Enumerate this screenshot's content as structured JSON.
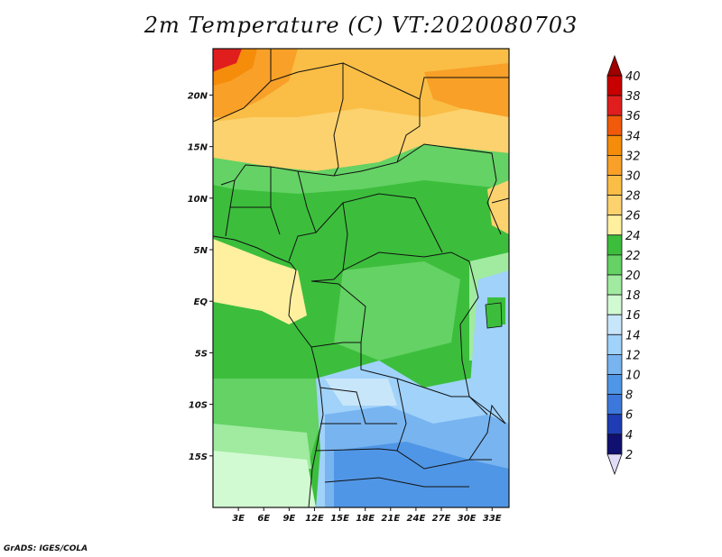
{
  "title": "2m Temperature (C) VT:2020080703",
  "credit": "GrADS: IGES/COLA",
  "map": {
    "lat_labels": [
      "20N",
      "15N",
      "10N",
      "5N",
      "EQ",
      "5S",
      "10S",
      "15S"
    ],
    "lat_values": [
      20,
      15,
      10,
      5,
      0,
      -5,
      -10,
      -15
    ],
    "lon_labels": [
      "3E",
      "6E",
      "9E",
      "12E",
      "15E",
      "18E",
      "21E",
      "24E",
      "27E",
      "30E",
      "33E"
    ],
    "lon_values": [
      3,
      6,
      9,
      12,
      15,
      18,
      21,
      24,
      27,
      30,
      33
    ],
    "lon_range": [
      0,
      35
    ],
    "lat_range": [
      -20,
      24.5
    ]
  },
  "colorbar": {
    "labels": [
      "40",
      "38",
      "36",
      "34",
      "32",
      "30",
      "28",
      "26",
      "24",
      "22",
      "20",
      "18",
      "16",
      "14",
      "12",
      "10",
      "8",
      "6",
      "4",
      "2"
    ],
    "colors": [
      "#a00000",
      "#c80000",
      "#e01e1e",
      "#f05a0a",
      "#f58c0a",
      "#f8a028",
      "#fabe46",
      "#fcd26e",
      "#fff0a0",
      "#3cbe3c",
      "#64d264",
      "#a0eba0",
      "#d2fad2",
      "#c8e6fa",
      "#a0d2fa",
      "#78b4f0",
      "#5096e6",
      "#3c78dc",
      "#1e3cb4",
      "#101070",
      "#e0dcf8"
    ]
  }
}
